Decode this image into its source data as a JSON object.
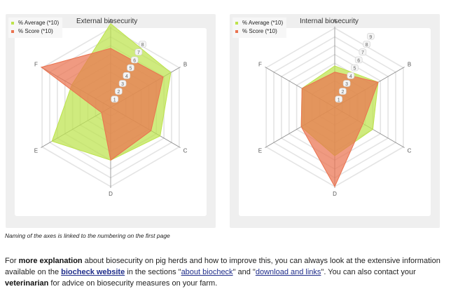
{
  "colors": {
    "average": "#bde34c",
    "score": "#ea7350",
    "panel_bg": "#efefef",
    "link": "#1f2d8a"
  },
  "chart_data": [
    {
      "type": "radar",
      "title": "External biosecurity",
      "axes": [
        "A",
        "B",
        "C",
        "D",
        "E",
        "F"
      ],
      "tick_labels": [
        "1",
        "2",
        "3",
        "4",
        "5",
        "6",
        "7",
        "8"
      ],
      "rmax": 9,
      "series": [
        {
          "name": "% Average (*10)",
          "color": "#bde34c",
          "values": [
            9.5,
            7.9,
            6.5,
            6.0,
            7.7,
            5.1
          ]
        },
        {
          "name": "% Score (*10)",
          "color": "#ea7350",
          "values": [
            6.7,
            6.9,
            5.3,
            6.0,
            1.2,
            9.1
          ]
        }
      ]
    },
    {
      "type": "radar",
      "title": "Internal biosecurity",
      "axes": [
        "A",
        "B",
        "C",
        "D",
        "E",
        "F"
      ],
      "tick_labels": [
        "1",
        "2",
        "3",
        "4",
        "5",
        "6",
        "7",
        "8",
        "9"
      ],
      "rmax": 9,
      "series": [
        {
          "name": "% Average (*10)",
          "color": "#bde34c",
          "values": [
            4.7,
            5.7,
            5.0,
            5.5,
            4.4,
            4.3
          ]
        },
        {
          "name": "% Score (*10)",
          "color": "#ea7350",
          "values": [
            4.0,
            5.7,
            3.7,
            9.0,
            4.4,
            4.3
          ]
        }
      ]
    }
  ],
  "caption": "Naming of the axes is linked to the numbering on the first page",
  "paragraph": {
    "p1": "For ",
    "b1": "more explanation",
    "p2": " about biosecurity on pig herds and how to improve this, you can always look at the extensive information available on the ",
    "link1": "biocheck website",
    "p3": " in the sections \"",
    "link2": "about biocheck",
    "p4": "\" and \"",
    "link3": "download and links",
    "p5": "\". You can also contact your ",
    "b2": "veterinarian",
    "p6": " for advice on biosecurity measures on your farm."
  }
}
